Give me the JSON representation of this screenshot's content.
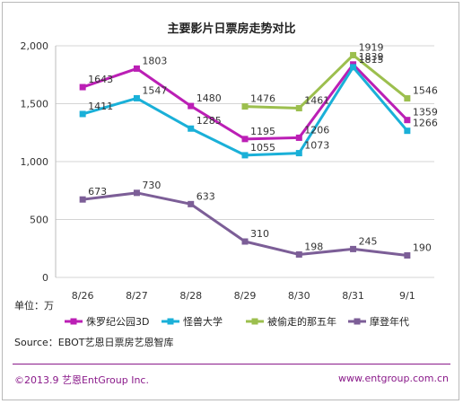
{
  "chart_data": {
    "type": "line",
    "title": "主要影片日票房走势对比",
    "unit_label": "单位：万",
    "categories": [
      "8/26",
      "8/27",
      "8/28",
      "8/29",
      "8/30",
      "8/31",
      "9/1"
    ],
    "ylim": [
      0,
      2000
    ],
    "yticks": [
      "0",
      "500",
      "1,000",
      "1,500",
      "2,000"
    ],
    "grid": true,
    "legend_position": "bottom",
    "series": [
      {
        "name": "侏罗纪公园3D",
        "color": "#bb1fb5",
        "values": [
          1643,
          1803,
          1480,
          1195,
          1206,
          1839,
          1359
        ]
      },
      {
        "name": "怪兽大学",
        "color": "#1ab0d8",
        "values": [
          1411,
          1547,
          1285,
          1055,
          1073,
          1815,
          1266
        ]
      },
      {
        "name": "被偷走的那五年",
        "color": "#9cbf4e",
        "values": [
          null,
          null,
          null,
          1476,
          1461,
          1919,
          1546
        ]
      },
      {
        "name": "摩登年代",
        "color": "#7c5e97",
        "values": [
          673,
          730,
          633,
          310,
          198,
          245,
          190
        ]
      }
    ],
    "source": "Source：EBOT艺恩日票房艺恩智库"
  },
  "footer": {
    "left": "©2013.9 艺恩EntGroup Inc.",
    "right": "www.entgroup.com.cn"
  }
}
